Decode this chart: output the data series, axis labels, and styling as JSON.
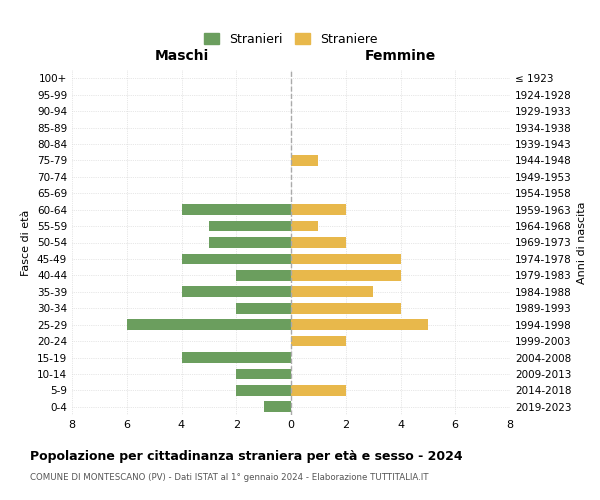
{
  "age_groups": [
    "100+",
    "95-99",
    "90-94",
    "85-89",
    "80-84",
    "75-79",
    "70-74",
    "65-69",
    "60-64",
    "55-59",
    "50-54",
    "45-49",
    "40-44",
    "35-39",
    "30-34",
    "25-29",
    "20-24",
    "15-19",
    "10-14",
    "5-9",
    "0-4"
  ],
  "birth_years": [
    "≤ 1923",
    "1924-1928",
    "1929-1933",
    "1934-1938",
    "1939-1943",
    "1944-1948",
    "1949-1953",
    "1954-1958",
    "1959-1963",
    "1964-1968",
    "1969-1973",
    "1974-1978",
    "1979-1983",
    "1984-1988",
    "1989-1993",
    "1994-1998",
    "1999-2003",
    "2004-2008",
    "2009-2013",
    "2014-2018",
    "2019-2023"
  ],
  "maschi": [
    0,
    0,
    0,
    0,
    0,
    0,
    0,
    0,
    4,
    3,
    3,
    4,
    2,
    4,
    2,
    6,
    0,
    4,
    2,
    2,
    1
  ],
  "femmine": [
    0,
    0,
    0,
    0,
    0,
    1,
    0,
    0,
    2,
    1,
    2,
    4,
    4,
    3,
    4,
    5,
    2,
    0,
    0,
    2,
    0
  ],
  "color_maschi": "#6b9e5e",
  "color_femmine": "#e8b84b",
  "title": "Popolazione per cittadinanza straniera per età e sesso - 2024",
  "subtitle": "COMUNE DI MONTESCANO (PV) - Dati ISTAT al 1° gennaio 2024 - Elaborazione TUTTITALIA.IT",
  "legend_maschi": "Stranieri",
  "legend_femmine": "Straniere",
  "xlabel_left": "Maschi",
  "xlabel_right": "Femmine",
  "ylabel_left": "Fasce di età",
  "ylabel_right": "Anni di nascita",
  "xlim": 8,
  "background_color": "#ffffff",
  "grid_color": "#d0d0d0"
}
